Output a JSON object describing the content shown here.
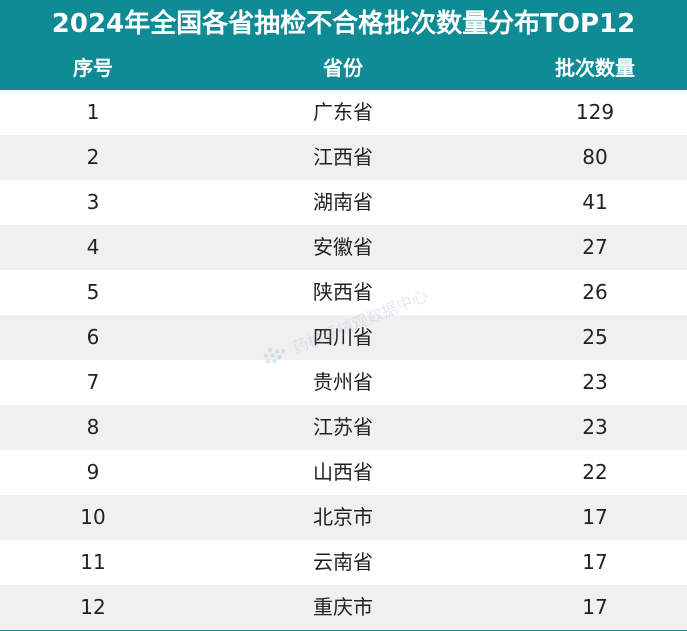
{
  "title": "2024年全国各省抽检不合格批次数量分布TOP12",
  "watermark_text": "药械医械观数据中心",
  "colors": {
    "header_bg": "#0e8b94",
    "header_text": "#ffffff",
    "row_alt": "#f0f0f0"
  },
  "chart_data": {
    "type": "table",
    "title": "2024年全国各省抽检不合格批次数量分布TOP12",
    "columns": [
      "序号",
      "省份",
      "批次数量"
    ],
    "rows": [
      [
        "1",
        "广东省",
        "129"
      ],
      [
        "2",
        "江西省",
        "80"
      ],
      [
        "3",
        "湖南省",
        "41"
      ],
      [
        "4",
        "安徽省",
        "27"
      ],
      [
        "5",
        "陕西省",
        "26"
      ],
      [
        "6",
        "四川省",
        "25"
      ],
      [
        "7",
        "贵州省",
        "23"
      ],
      [
        "8",
        "江苏省",
        "23"
      ],
      [
        "9",
        "山西省",
        "22"
      ],
      [
        "10",
        "北京市",
        "17"
      ],
      [
        "11",
        "云南省",
        "17"
      ],
      [
        "12",
        "重庆市",
        "17"
      ]
    ]
  }
}
